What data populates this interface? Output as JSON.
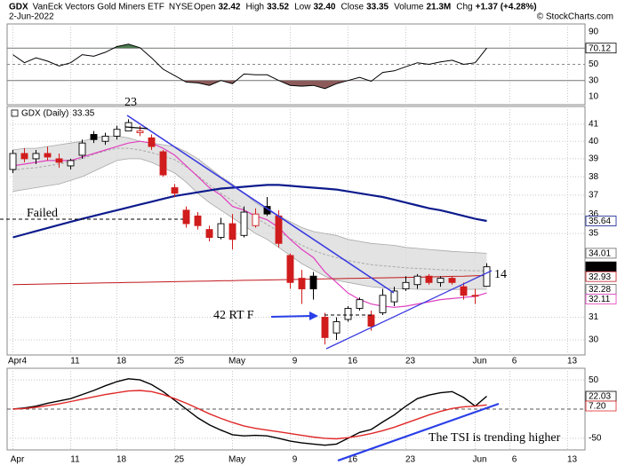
{
  "header": {
    "symbol": "GDX",
    "name": "VanEck Vectors Gold Miners ETF",
    "exchange": "NYSE",
    "date": "2-Jun-2022",
    "quote": [
      {
        "label": "Open",
        "value": "32.42"
      },
      {
        "label": "High",
        "value": "33.52"
      },
      {
        "label": "Low",
        "value": "32.40"
      },
      {
        "label": "Close",
        "value": "33.35"
      },
      {
        "label": "Volume",
        "value": "21.3M"
      },
      {
        "label": "Chg",
        "value": "+1.37 (+4.28%)"
      }
    ],
    "credit": "© StockCharts.com"
  },
  "chart_data": [
    {
      "type": "line",
      "xlim": [
        -0.5,
        49.5
      ],
      "ylim": [
        0,
        100
      ],
      "yticks": [
        10,
        30,
        50,
        90
      ],
      "guide_lines": [
        30,
        70
      ],
      "color": "#000000",
      "overbought_fill": "#4e7d52",
      "oversold_fill": "#8c5a5a",
      "values": [
        62,
        52,
        58,
        54,
        48,
        52,
        62,
        60,
        65,
        72,
        75,
        70.5,
        58,
        44,
        36,
        28,
        27,
        24,
        30,
        26,
        38,
        37,
        37,
        30,
        24,
        23,
        24,
        20,
        26,
        30,
        34,
        29,
        40,
        42,
        47,
        52,
        50,
        53,
        55,
        50,
        52,
        70.12
      ]
    },
    {
      "type": "candlestick",
      "title": "GDX (Daily)",
      "log_scale": true,
      "xlim": [
        -0.5,
        49.5
      ],
      "ylim": [
        29.35,
        42.07
      ],
      "yticks": [
        30,
        31,
        35,
        36,
        37,
        38,
        39,
        40,
        41
      ],
      "xticks": [
        {
          "value": 0,
          "label": "Apr4"
        },
        {
          "value": 5,
          "label": "11"
        },
        {
          "value": 9,
          "label": "18"
        },
        {
          "value": 14,
          "label": "25"
        },
        {
          "value": 19,
          "label": "May"
        },
        {
          "value": 24,
          "label": "9"
        },
        {
          "value": 29,
          "label": "16"
        },
        {
          "value": 34,
          "label": "23"
        },
        {
          "value": 40,
          "label": "Jun"
        },
        {
          "value": 43,
          "label": "6"
        },
        {
          "value": 48,
          "label": "13"
        }
      ],
      "up_color": "#000000",
      "down_color": "#d01c1c",
      "open": [
        38.4,
        39.3,
        39.0,
        39.3,
        39.0,
        38.6,
        39.2,
        40.4,
        40.0,
        40.3,
        40.6,
        40.5,
        40.2,
        39.4,
        37.4,
        36.2,
        35.9,
        35.2,
        34.8,
        35.5,
        34.9,
        35.4,
        36.4,
        35.9,
        33.9,
        32.8,
        32.9,
        31.0,
        30.3,
        30.9,
        31.4,
        31.1,
        31.2,
        31.7,
        32.3,
        32.5,
        32.9,
        32.6,
        32.8,
        32.4,
        32.0,
        32.42
      ],
      "high": [
        39.5,
        39.6,
        39.5,
        39.7,
        39.3,
        39.0,
        40.1,
        40.6,
        40.5,
        40.9,
        41.3,
        40.9,
        40.4,
        39.5,
        37.6,
        36.4,
        36.1,
        35.4,
        35.8,
        36.0,
        36.4,
        36.3,
        36.9,
        36.2,
        34.0,
        33.2,
        33.1,
        31.2,
        31.0,
        31.5,
        31.9,
        31.3,
        32.3,
        32.4,
        32.9,
        33.0,
        33.0,
        32.9,
        32.9,
        32.6,
        32.3,
        33.52
      ],
      "low": [
        38.2,
        38.8,
        38.7,
        38.9,
        38.5,
        38.4,
        39.0,
        39.9,
        39.8,
        40.1,
        40.6,
        40.3,
        39.5,
        38.0,
        36.9,
        35.3,
        35.2,
        34.6,
        34.7,
        34.2,
        34.8,
        35.3,
        35.9,
        34.3,
        32.3,
        31.6,
        31.8,
        29.8,
        30.0,
        30.8,
        31.3,
        30.4,
        31.1,
        31.5,
        32.2,
        32.3,
        32.5,
        32.4,
        32.5,
        31.8,
        31.6,
        32.4
      ],
      "close": [
        39.3,
        39.0,
        39.3,
        39.1,
        38.8,
        38.9,
        39.9,
        40.1,
        40.3,
        40.7,
        41.1,
        40.6,
        39.7,
        38.1,
        37.1,
        35.5,
        35.4,
        34.8,
        35.5,
        34.7,
        36.1,
        36.0,
        36.0,
        34.5,
        32.6,
        32.3,
        32.3,
        30.1,
        30.8,
        31.4,
        31.8,
        30.6,
        32.0,
        32.2,
        32.6,
        32.9,
        32.6,
        32.8,
        32.6,
        32.0,
        31.98,
        33.35
      ],
      "band": {
        "color": "#dcdcdc",
        "edge_color": "#a8a8a8",
        "upper": [
          39.5,
          39.6,
          39.6,
          39.7,
          39.8,
          39.9,
          40.0,
          40.2,
          40.3,
          40.3,
          40.2,
          40.0,
          39.9,
          39.8,
          39.7,
          39.4,
          39.0,
          38.5,
          38.0,
          37.6,
          37.1,
          36.6,
          36.2,
          35.9,
          35.6,
          35.3,
          35.1,
          35.0,
          34.9,
          34.7,
          34.6,
          34.5,
          34.45,
          34.4,
          34.3,
          34.25,
          34.2,
          34.15,
          34.1,
          34.07,
          34.04,
          34.01
        ],
        "middle": [
          38.35,
          38.45,
          38.5,
          38.6,
          38.7,
          38.85,
          39.0,
          39.25,
          39.45,
          39.6,
          39.6,
          39.5,
          39.35,
          39.15,
          38.95,
          38.55,
          38.05,
          37.55,
          37.1,
          36.7,
          36.25,
          35.8,
          35.45,
          35.1,
          34.75,
          34.4,
          34.15,
          33.95,
          33.8,
          33.65,
          33.55,
          33.45,
          33.4,
          33.35,
          33.3,
          33.27,
          33.24,
          33.21,
          33.19,
          33.17,
          33.16,
          33.15
        ],
        "lower": [
          37.2,
          37.3,
          37.4,
          37.5,
          37.6,
          37.8,
          38.0,
          38.3,
          38.6,
          38.9,
          39.0,
          39.0,
          38.8,
          38.5,
          38.2,
          37.7,
          37.1,
          36.6,
          36.2,
          35.8,
          35.4,
          35.0,
          34.7,
          34.3,
          33.9,
          33.5,
          33.2,
          32.9,
          32.7,
          32.6,
          32.5,
          32.4,
          32.35,
          32.3,
          32.3,
          32.28,
          32.27,
          32.27,
          32.27,
          32.27,
          32.28,
          32.28
        ]
      },
      "overlays": [
        {
          "color": "#e040c0",
          "width": 1.2,
          "values": [
            38.6,
            38.7,
            38.8,
            38.9,
            38.9,
            38.9,
            39.1,
            39.3,
            39.5,
            39.7,
            39.9,
            40.0,
            39.9,
            39.6,
            39.2,
            38.6,
            38.0,
            37.4,
            37.0,
            36.4,
            36.2,
            35.9,
            35.7,
            35.3,
            34.7,
            34.2,
            33.8,
            33.1,
            32.6,
            32.1,
            31.8,
            31.6,
            31.5,
            31.45,
            31.5,
            31.6,
            31.7,
            31.8,
            31.85,
            31.9,
            31.95,
            32.11
          ]
        },
        {
          "color": "#0d1b8c",
          "width": 2.2,
          "values": [
            34.8,
            34.96,
            35.12,
            35.28,
            35.44,
            35.6,
            35.75,
            35.9,
            36.05,
            36.2,
            36.35,
            36.5,
            36.65,
            36.8,
            36.95,
            37.05,
            37.15,
            37.25,
            37.35,
            37.4,
            37.45,
            37.5,
            37.55,
            37.55,
            37.5,
            37.45,
            37.4,
            37.35,
            37.3,
            37.2,
            37.1,
            37.0,
            36.9,
            36.75,
            36.6,
            36.45,
            36.3,
            36.2,
            36.05,
            35.9,
            35.75,
            35.64
          ]
        },
        {
          "color": "#c0181d",
          "width": 1,
          "values": [
            32.5,
            32.51,
            32.52,
            32.53,
            32.54,
            32.55,
            32.56,
            32.57,
            32.58,
            32.59,
            32.6,
            32.61,
            32.62,
            32.63,
            32.64,
            32.65,
            32.66,
            32.67,
            32.68,
            32.69,
            32.7,
            32.71,
            32.72,
            32.73,
            32.74,
            32.75,
            32.76,
            32.77,
            32.78,
            32.79,
            32.8,
            32.81,
            32.82,
            32.83,
            32.84,
            32.85,
            32.86,
            32.88,
            32.89,
            32.9,
            32.92,
            32.93
          ]
        }
      ],
      "annotations": [
        {
          "text": "23",
          "color": "#2a3fc8"
        },
        {
          "text": "Failed",
          "color": "#d02020"
        },
        {
          "text": "42 RT F",
          "color": "#2a3fc8"
        },
        {
          "text": "14",
          "color": "#2a3fc8"
        }
      ]
    },
    {
      "type": "line",
      "xlim": [
        -0.5,
        49.5
      ],
      "ylim": [
        -70,
        70
      ],
      "yticks": [
        -50,
        0,
        50
      ],
      "xticks": [
        {
          "value": 0,
          "label": "Apr"
        },
        {
          "value": 5,
          "label": "11"
        },
        {
          "value": 9,
          "label": "18"
        },
        {
          "value": 14,
          "label": "25"
        },
        {
          "value": 19,
          "label": "May"
        },
        {
          "value": 24,
          "label": "9"
        },
        {
          "value": 29,
          "label": "16"
        },
        {
          "value": 34,
          "label": "23"
        },
        {
          "value": 40,
          "label": "Jun"
        },
        {
          "value": 43,
          "label": "6"
        },
        {
          "value": 48,
          "label": "13"
        }
      ],
      "series": [
        {
          "color": "#000000",
          "values": [
            0,
            2,
            5,
            10,
            14,
            18,
            25,
            32,
            40,
            47,
            52,
            50,
            42,
            30,
            15,
            0,
            -15,
            -27,
            -36,
            -44,
            -46,
            -45,
            -46,
            -50,
            -55,
            -58,
            -60,
            -62,
            -60,
            -50,
            -40,
            -35,
            -22,
            -10,
            5,
            18,
            24,
            28,
            30,
            20,
            5,
            22.03
          ]
        },
        {
          "color": "#e02828",
          "values": [
            0,
            1,
            3,
            6,
            9,
            13,
            17,
            21,
            25,
            28,
            31,
            32,
            30,
            25,
            18,
            10,
            1,
            -8,
            -16,
            -23,
            -29,
            -33,
            -36,
            -39,
            -42,
            -45,
            -48,
            -50,
            -51,
            -49,
            -46,
            -42,
            -37,
            -31,
            -24,
            -17,
            -10,
            -4,
            1,
            4,
            5,
            7.2
          ],
          "value_labels": [
            null,
            null,
            null,
            null,
            null,
            null,
            null,
            null,
            null,
            null,
            null,
            null,
            null,
            null,
            null,
            null,
            null,
            null,
            null,
            null,
            null,
            null,
            null,
            null,
            null,
            null,
            null,
            null,
            null,
            null,
            null,
            null,
            null,
            null,
            null,
            null,
            null,
            null,
            null,
            null,
            null,
            "7.20"
          ]
        }
      ],
      "annotations": [
        {
          "text": "The TSI is trending higher",
          "color": "#2a3fc8"
        }
      ]
    }
  ]
}
